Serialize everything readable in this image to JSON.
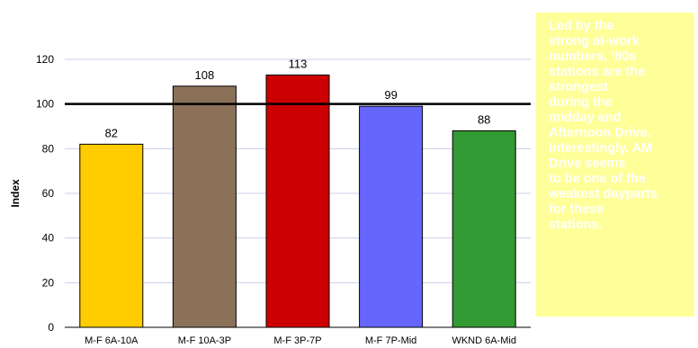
{
  "chart_data": {
    "type": "bar",
    "categories": [
      "M-F 6A-10A",
      "M-F 10A-3P",
      "M-F 3P-7P",
      "M-F 7P-Mid",
      "WKND 6A-Mid"
    ],
    "values": [
      82,
      108,
      113,
      99,
      88
    ],
    "data_labels": [
      "82",
      "108",
      "113",
      "99",
      "88"
    ],
    "colors": [
      "#ffcc00",
      "#8b7158",
      "#cc0000",
      "#6666ff",
      "#339933"
    ],
    "ylabel": "Index",
    "xlabel": "",
    "ylim": [
      0,
      120
    ],
    "yticks": [
      "0",
      "20",
      "40",
      "60",
      "80",
      "100",
      "120"
    ],
    "reference_line": 100,
    "grid": true
  },
  "callout": {
    "lines": [
      "Led by the",
      "strong at-work",
      "numbers, ’80s",
      "stations are the",
      "strongest",
      "during the",
      "midday and",
      "Afternoon Drive.",
      "Interestingly, AM",
      "Drive seems",
      "to be one of the",
      "weakest dayparts",
      "for these",
      "stations."
    ]
  }
}
